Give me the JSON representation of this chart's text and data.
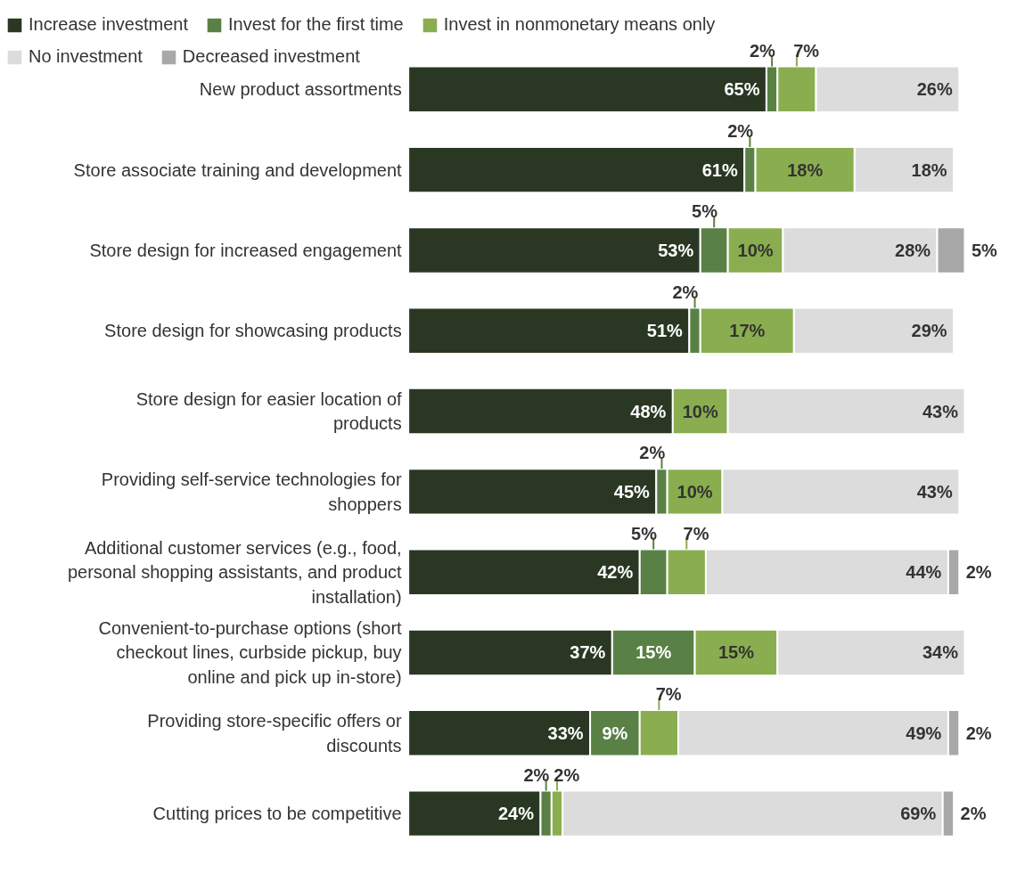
{
  "chart_data": {
    "type": "bar",
    "orientation": "horizontal",
    "stacked": true,
    "legend": "top",
    "grid": false,
    "categories": [
      "New product assortments",
      "Store associate training and development",
      "Store design for increased engagement",
      "Store design for showcasing products",
      "Store design for easier location of products",
      "Providing self-service technologies for shoppers",
      "Additional customer services (e.g., food, personal shopping assistants, and product installation)",
      "Convenient-to-purchase options (short checkout lines, curbside pickup, buy online and pick up in-store)",
      "Providing store-specific offers or discounts",
      "Cutting prices to be competitive"
    ],
    "series": [
      {
        "name": "Increase investment",
        "color": "#2a3823",
        "values": [
          65,
          61,
          53,
          51,
          48,
          45,
          42,
          37,
          33,
          24
        ],
        "value_labels": [
          "65%",
          "61%",
          "53%",
          "51%",
          "48%",
          "45%",
          "42%",
          "37%",
          "33%",
          "24%"
        ]
      },
      {
        "name": "Invest for the first time",
        "color": "#5a8145",
        "values": [
          2,
          2,
          5,
          2,
          null,
          2,
          5,
          15,
          9,
          2
        ],
        "value_labels": [
          "2%",
          "2%",
          "5%",
          "2%",
          null,
          "2%",
          "5%",
          "15%",
          "9%",
          "2%"
        ]
      },
      {
        "name": "Invest in nonmonetary means only",
        "color": "#8aae4f",
        "values": [
          7,
          18,
          10,
          17,
          10,
          10,
          7,
          15,
          7,
          2
        ],
        "value_labels": [
          "7%",
          "18%",
          "10%",
          "17%",
          "10%",
          "10%",
          "7%",
          "15%",
          "7%",
          "2%"
        ]
      },
      {
        "name": "No investment",
        "color": "#dcdcdc",
        "values": [
          26,
          18,
          28,
          29,
          43,
          43,
          44,
          34,
          49,
          69
        ],
        "value_labels": [
          "26%",
          "18%",
          "28%",
          "29%",
          "43%",
          "43%",
          "44%",
          "34%",
          "49%",
          "69%"
        ]
      },
      {
        "name": "Decreased investment",
        "color": "#a8a8a8",
        "values": [
          null,
          null,
          5,
          null,
          null,
          null,
          2,
          null,
          2,
          2
        ],
        "value_labels": [
          null,
          null,
          "5%",
          null,
          null,
          null,
          "2%",
          null,
          "2%",
          "2%"
        ]
      }
    ]
  }
}
